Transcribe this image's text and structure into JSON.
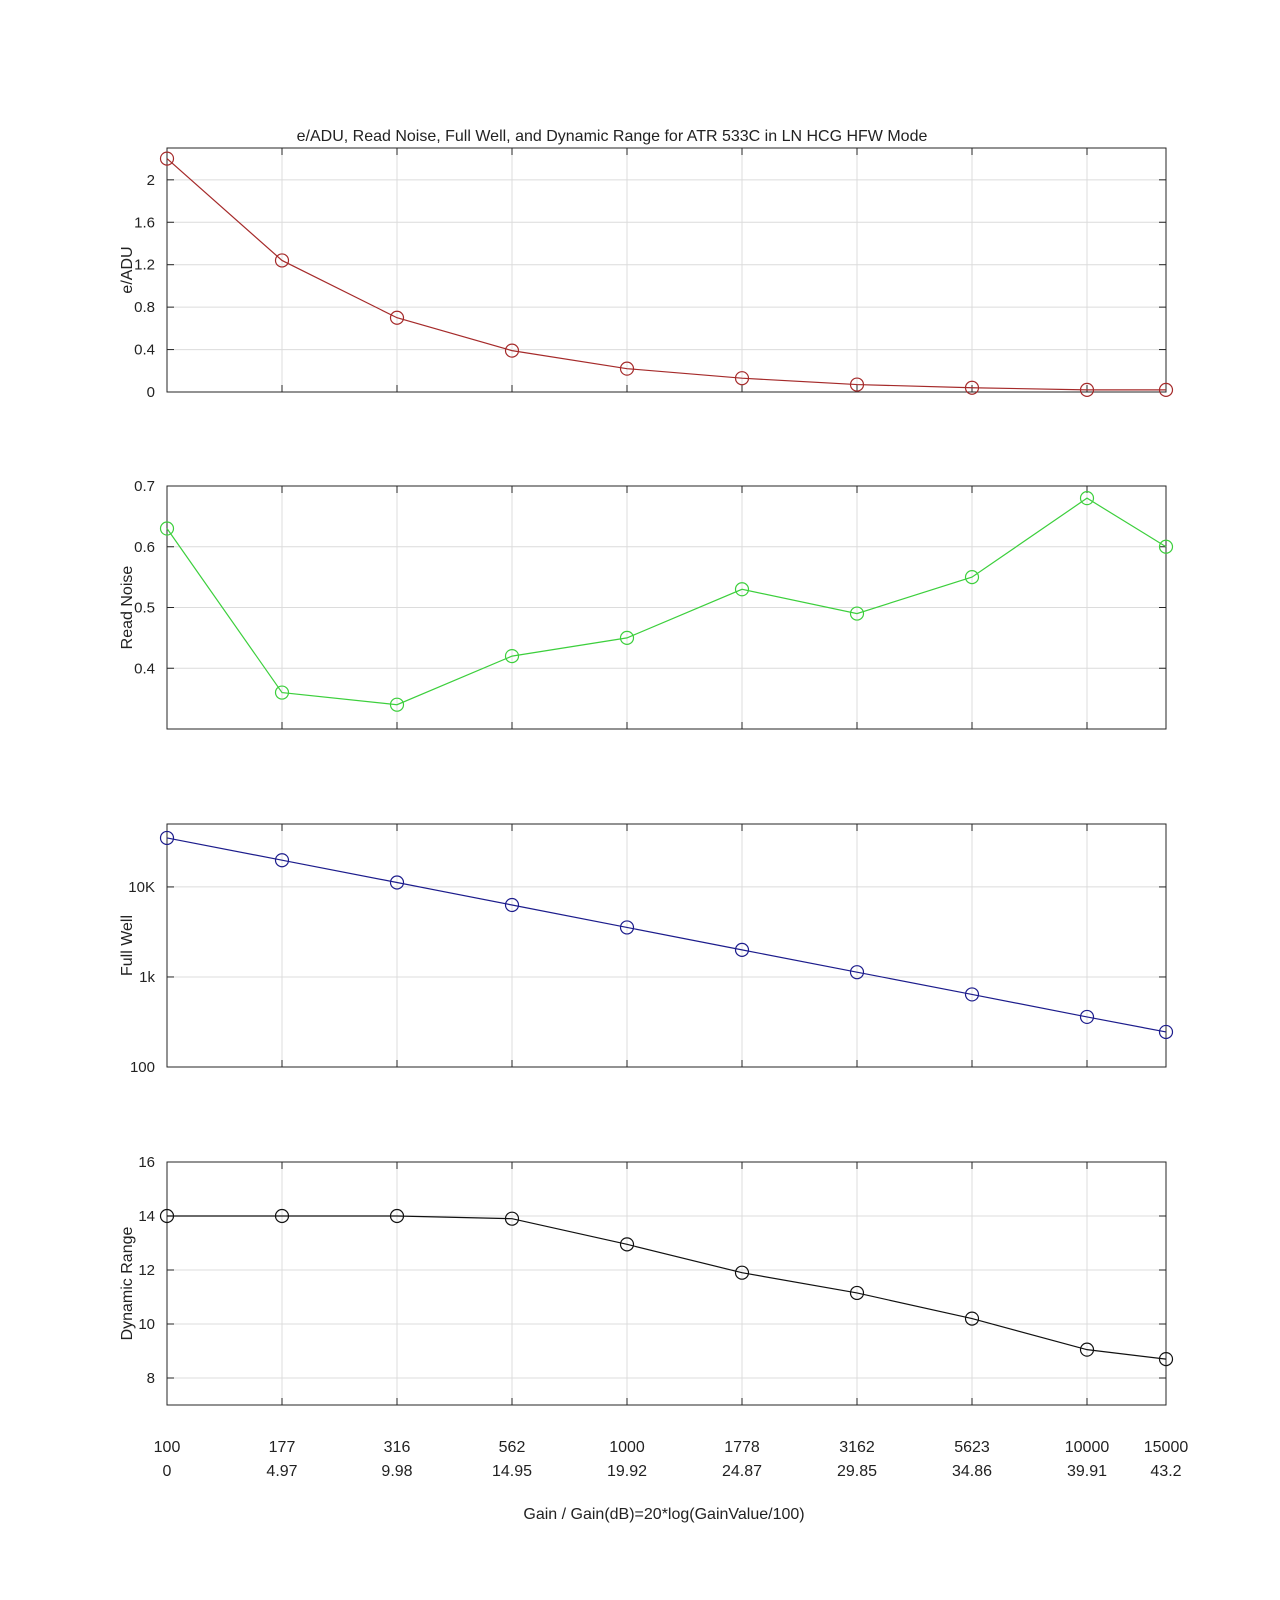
{
  "title": "e/ADU, Read Noise, Full Well, and Dynamic Range for ATR 533C  in LN HCG HFW Mode",
  "xlabel": "Gain / Gain(dB)=20*log(GainValue/100)",
  "colors": {
    "grid": "#dcdcdc",
    "axis": "#262626"
  },
  "chart_data": [
    {
      "type": "line",
      "ylabel": "e/ADU",
      "color": "#a52a2a",
      "scale": "linear",
      "ylim": [
        0,
        2.3
      ],
      "yticks": [
        0,
        0.4,
        0.8,
        1.2,
        1.6,
        2
      ],
      "ytick_labels": [
        "0",
        "0.4",
        "0.8",
        "1.2",
        "1.6",
        "2"
      ],
      "values": [
        2.2,
        1.24,
        0.7,
        0.39,
        0.22,
        0.13,
        0.07,
        0.04,
        0.02,
        0.02
      ]
    },
    {
      "type": "line",
      "ylabel": "Read Noise",
      "color": "#3ccf3c",
      "scale": "linear",
      "ylim": [
        0.3,
        0.7
      ],
      "yticks": [
        0.4,
        0.5,
        0.6,
        0.7
      ],
      "ytick_labels": [
        "0.4",
        "0.5",
        "0.6",
        "0.7"
      ],
      "values": [
        0.63,
        0.36,
        0.34,
        0.42,
        0.45,
        0.53,
        0.49,
        0.55,
        0.68,
        0.6
      ]
    },
    {
      "type": "line",
      "ylabel": "Full Well",
      "color": "#1c1c8c",
      "scale": "log",
      "ylim": [
        100,
        50000
      ],
      "yticks": [
        100,
        1000,
        10000
      ],
      "ytick_labels": [
        "100",
        "1k",
        "10K"
      ],
      "values": [
        35000,
        19800,
        11200,
        6300,
        3550,
        2000,
        1130,
        640,
        360,
        245
      ]
    },
    {
      "type": "line",
      "ylabel": "Dynamic Range",
      "color": "#111111",
      "scale": "linear",
      "ylim": [
        7,
        16
      ],
      "yticks": [
        8,
        10,
        12,
        14,
        16
      ],
      "ytick_labels": [
        "8",
        "10",
        "12",
        "14",
        "16"
      ],
      "values": [
        14,
        14,
        14,
        13.9,
        12.95,
        11.9,
        11.15,
        10.2,
        9.05,
        8.7
      ]
    }
  ],
  "x_gain": [
    "100",
    "177",
    "316",
    "562",
    "1000",
    "1778",
    "3162",
    "5623",
    "10000",
    "15000"
  ],
  "x_db": [
    "0",
    "4.97",
    "9.98",
    "14.95",
    "19.92",
    "24.87",
    "29.85",
    "34.86",
    "39.91",
    "43.2"
  ]
}
